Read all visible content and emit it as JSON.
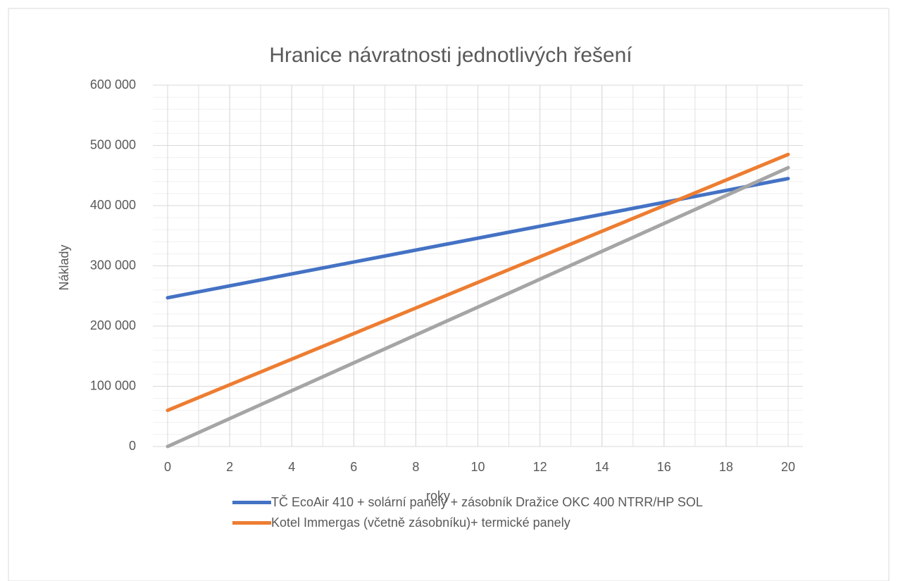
{
  "chart_data": {
    "type": "line",
    "title": "Hranice návratnosti jednotlivých řešení",
    "x_label": "roky",
    "y_label": "Náklady",
    "x": [
      0,
      20
    ],
    "series": [
      {
        "name": "TČ EcoAir 410 + solární panely + zásobník Dražice OKC 400 NTRR/HP SOL",
        "color": "#4472c4",
        "values": [
          247000,
          445000
        ]
      },
      {
        "name": "Kotel Immergas (včetně zásobníku)+ termické panely",
        "color": "#ed7d31",
        "values": [
          60000,
          485000
        ]
      },
      {
        "color": "#a5a5a5",
        "values": [
          0,
          463000
        ]
      }
    ],
    "xlim": [
      0,
      20
    ],
    "xticks": [
      0,
      2,
      4,
      6,
      8,
      10,
      12,
      14,
      16,
      18,
      20
    ],
    "ylim": [
      0,
      600000
    ],
    "yticks": [
      0,
      {
        "value": 100000,
        "label": "100 000"
      },
      {
        "value": 200000,
        "label": "200 000"
      },
      {
        "value": 300000,
        "label": "300 000"
      },
      {
        "value": 400000,
        "label": "400 000"
      },
      {
        "value": 500000,
        "label": "500 000"
      },
      {
        "value": 600000,
        "label": "600 000"
      }
    ],
    "grid": true,
    "minor_grid": {
      "x": 1,
      "y": 20000
    },
    "legend": "bottom"
  }
}
